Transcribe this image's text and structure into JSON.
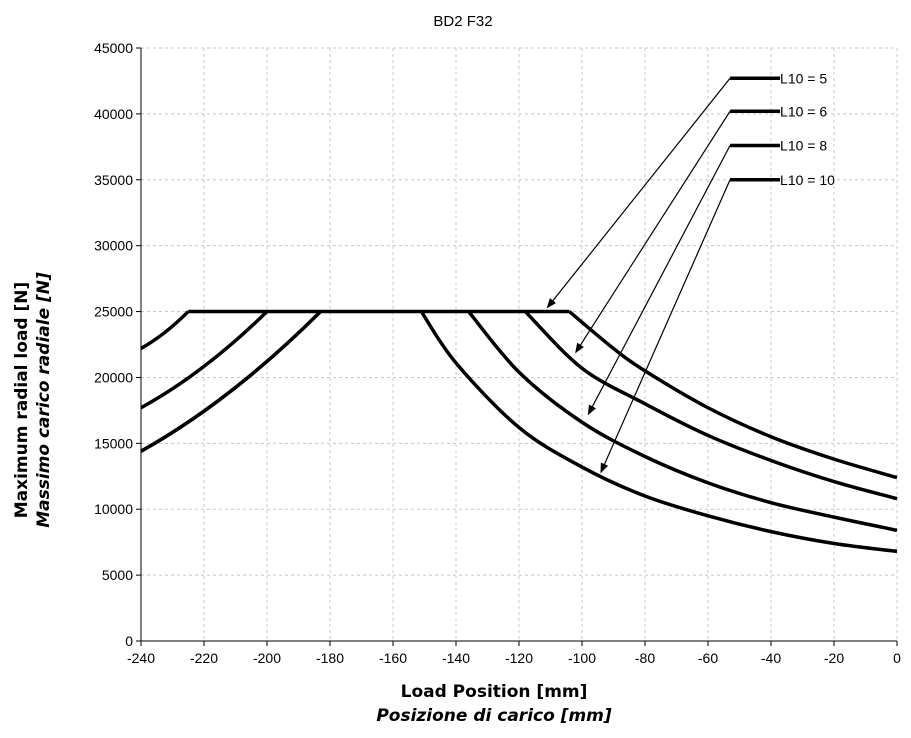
{
  "chart_data": {
    "type": "line",
    "title": "BD2 F32",
    "xlabel": "Load Position [mm]",
    "xlabel_it": "Posizione di carico [mm]",
    "ylabel": "Maximum radial load [N]",
    "ylabel_it": "Massimo carico radiale [N]",
    "xlim": [
      -240,
      0
    ],
    "ylim": [
      0,
      45000
    ],
    "xticks": [
      -240,
      -220,
      -200,
      -180,
      -160,
      -140,
      -120,
      -100,
      -80,
      -60,
      -40,
      -20,
      0
    ],
    "yticks": [
      0,
      5000,
      10000,
      15000,
      20000,
      25000,
      30000,
      35000,
      40000,
      45000
    ],
    "grid": true,
    "legend_position": "top-right",
    "series": [
      {
        "name": "L10 = 5",
        "left": [
          [
            -240,
            22200
          ],
          [
            -225,
            25000
          ]
        ],
        "right": [
          [
            -104,
            25000
          ],
          [
            -90,
            22200
          ],
          [
            -80,
            20500
          ],
          [
            -60,
            17700
          ],
          [
            -40,
            15500
          ],
          [
            -20,
            13800
          ],
          [
            0,
            12400
          ]
        ]
      },
      {
        "name": "L10 = 6",
        "left": [
          [
            -240,
            17700
          ],
          [
            -200,
            25000
          ]
        ],
        "right": [
          [
            -118,
            25000
          ],
          [
            -100,
            20700
          ],
          [
            -80,
            18000
          ],
          [
            -60,
            15600
          ],
          [
            -40,
            13700
          ],
          [
            -20,
            12100
          ],
          [
            0,
            10800
          ]
        ]
      },
      {
        "name": "L10 = 8",
        "left": [
          [
            -240,
            14400
          ],
          [
            -183,
            25000
          ]
        ],
        "right": [
          [
            -136,
            25000
          ],
          [
            -120,
            20400
          ],
          [
            -100,
            16600
          ],
          [
            -80,
            14000
          ],
          [
            -60,
            12000
          ],
          [
            -40,
            10500
          ],
          [
            -20,
            9400
          ],
          [
            0,
            8400
          ]
        ]
      },
      {
        "name": "L10 = 10",
        "left": [
          [
            -240,
            14400
          ],
          [
            -183,
            25000
          ]
        ],
        "right": [
          [
            -151,
            25000
          ],
          [
            -140,
            21100
          ],
          [
            -120,
            16200
          ],
          [
            -100,
            13200
          ],
          [
            -80,
            11000
          ],
          [
            -60,
            9500
          ],
          [
            -40,
            8300
          ],
          [
            -20,
            7400
          ],
          [
            0,
            6800
          ]
        ]
      }
    ],
    "annotations": [
      {
        "label": "L10 = 5",
        "from": [
          -53,
          42700
        ],
        "to": [
          -111,
          25300
        ]
      },
      {
        "label": "L10 = 6",
        "from": [
          -53,
          40200
        ],
        "to": [
          -102,
          21900
        ]
      },
      {
        "label": "L10 = 8",
        "from": [
          -53,
          37600
        ],
        "to": [
          -98,
          17200
        ]
      },
      {
        "label": "L10 = 10",
        "from": [
          -53,
          35000
        ],
        "to": [
          -94,
          12800
        ]
      }
    ]
  }
}
